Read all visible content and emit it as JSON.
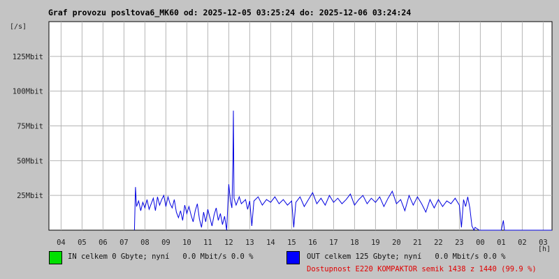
{
  "title": "Graf provozu posltova6_MK60 od: 2025-12-05 03:25:24 do: 2025-12-06 03:24:24",
  "chart_data": {
    "type": "line",
    "y_unit_label": "[/s]",
    "x_unit_label": "[h]",
    "x_tick_labels": [
      "04",
      "05",
      "06",
      "07",
      "08",
      "09",
      "10",
      "11",
      "12",
      "13",
      "14",
      "15",
      "16",
      "17",
      "18",
      "19",
      "20",
      "21",
      "22",
      "23",
      "00",
      "01",
      "02",
      "03"
    ],
    "y_ticks": [
      {
        "value": 25,
        "label": "25Mbit"
      },
      {
        "value": 50,
        "label": "50Mbit"
      },
      {
        "value": 75,
        "label": "75Mbit"
      },
      {
        "value": 100,
        "label": "100Mbit"
      },
      {
        "value": 125,
        "label": "125Mbit"
      }
    ],
    "ylim": [
      0,
      150
    ],
    "x_range_hours": [
      3.42,
      27.42
    ],
    "grid": true,
    "series": [
      {
        "color": "#0000e0",
        "points": [
          [
            7.5,
            0
          ],
          [
            7.55,
            31
          ],
          [
            7.6,
            17
          ],
          [
            7.7,
            21
          ],
          [
            7.8,
            14
          ],
          [
            7.9,
            20
          ],
          [
            8.0,
            16
          ],
          [
            8.1,
            22
          ],
          [
            8.2,
            15
          ],
          [
            8.3,
            19
          ],
          [
            8.4,
            23
          ],
          [
            8.5,
            14
          ],
          [
            8.6,
            24
          ],
          [
            8.7,
            18
          ],
          [
            8.8,
            22
          ],
          [
            8.9,
            25
          ],
          [
            9.0,
            17
          ],
          [
            9.1,
            24
          ],
          [
            9.2,
            19
          ],
          [
            9.3,
            16
          ],
          [
            9.4,
            22
          ],
          [
            9.5,
            13
          ],
          [
            9.6,
            9
          ],
          [
            9.7,
            14
          ],
          [
            9.8,
            7
          ],
          [
            9.9,
            18
          ],
          [
            10.0,
            12
          ],
          [
            10.1,
            17
          ],
          [
            10.2,
            11
          ],
          [
            10.3,
            6
          ],
          [
            10.4,
            14
          ],
          [
            10.5,
            19
          ],
          [
            10.6,
            8
          ],
          [
            10.7,
            2
          ],
          [
            10.8,
            13
          ],
          [
            10.9,
            6
          ],
          [
            11.0,
            15
          ],
          [
            11.1,
            9
          ],
          [
            11.2,
            3
          ],
          [
            11.3,
            11
          ],
          [
            11.4,
            16
          ],
          [
            11.5,
            7
          ],
          [
            11.6,
            12
          ],
          [
            11.7,
            4
          ],
          [
            11.8,
            10
          ],
          [
            11.9,
            0
          ],
          [
            12.0,
            33
          ],
          [
            12.08,
            21
          ],
          [
            12.15,
            16
          ],
          [
            12.2,
            52
          ],
          [
            12.22,
            86
          ],
          [
            12.25,
            23
          ],
          [
            12.35,
            18
          ],
          [
            12.5,
            24
          ],
          [
            12.6,
            19
          ],
          [
            12.8,
            22
          ],
          [
            12.9,
            15
          ],
          [
            13.0,
            21
          ],
          [
            13.1,
            3
          ],
          [
            13.2,
            21
          ],
          [
            13.4,
            24
          ],
          [
            13.6,
            18
          ],
          [
            13.8,
            22
          ],
          [
            14.0,
            20
          ],
          [
            14.2,
            24
          ],
          [
            14.4,
            19
          ],
          [
            14.6,
            22
          ],
          [
            14.8,
            18
          ],
          [
            15.0,
            21
          ],
          [
            15.1,
            2
          ],
          [
            15.2,
            20
          ],
          [
            15.4,
            24
          ],
          [
            15.6,
            17
          ],
          [
            15.8,
            22
          ],
          [
            16.0,
            27
          ],
          [
            16.2,
            19
          ],
          [
            16.4,
            23
          ],
          [
            16.6,
            18
          ],
          [
            16.8,
            25
          ],
          [
            17.0,
            20
          ],
          [
            17.2,
            23
          ],
          [
            17.4,
            19
          ],
          [
            17.6,
            22
          ],
          [
            17.8,
            26
          ],
          [
            18.0,
            18
          ],
          [
            18.2,
            22
          ],
          [
            18.4,
            25
          ],
          [
            18.6,
            19
          ],
          [
            18.8,
            23
          ],
          [
            19.0,
            20
          ],
          [
            19.2,
            24
          ],
          [
            19.4,
            17
          ],
          [
            19.6,
            23
          ],
          [
            19.8,
            28
          ],
          [
            20.0,
            19
          ],
          [
            20.2,
            22
          ],
          [
            20.4,
            14
          ],
          [
            20.6,
            25
          ],
          [
            20.8,
            18
          ],
          [
            21.0,
            24
          ],
          [
            21.2,
            19
          ],
          [
            21.4,
            13
          ],
          [
            21.6,
            22
          ],
          [
            21.8,
            16
          ],
          [
            22.0,
            22
          ],
          [
            22.2,
            17
          ],
          [
            22.4,
            21
          ],
          [
            22.6,
            19
          ],
          [
            22.8,
            23
          ],
          [
            23.0,
            18
          ],
          [
            23.1,
            2
          ],
          [
            23.2,
            22
          ],
          [
            23.3,
            17
          ],
          [
            23.4,
            24
          ],
          [
            23.5,
            16
          ],
          [
            23.6,
            3
          ],
          [
            23.7,
            0
          ],
          [
            23.75,
            2
          ],
          [
            23.85,
            1
          ],
          [
            23.95,
            0
          ],
          [
            25.0,
            0
          ],
          [
            25.1,
            7
          ],
          [
            25.15,
            0
          ],
          [
            27.42,
            0
          ]
        ]
      }
    ]
  },
  "legend": {
    "in_color": "#00e000",
    "in_text": "IN celkem 0 Gbyte; nyní   0.0 Mbit/s 0.0 %",
    "out_color": "#0000ff",
    "out_text": "OUT celkem 125 Gbyte; nyní   0.0 Mbit/s 0.0 %",
    "availability_text": "Dostupnost E220 KOMPAKTOR semik 1438 z 1440 (99.9 %)"
  }
}
